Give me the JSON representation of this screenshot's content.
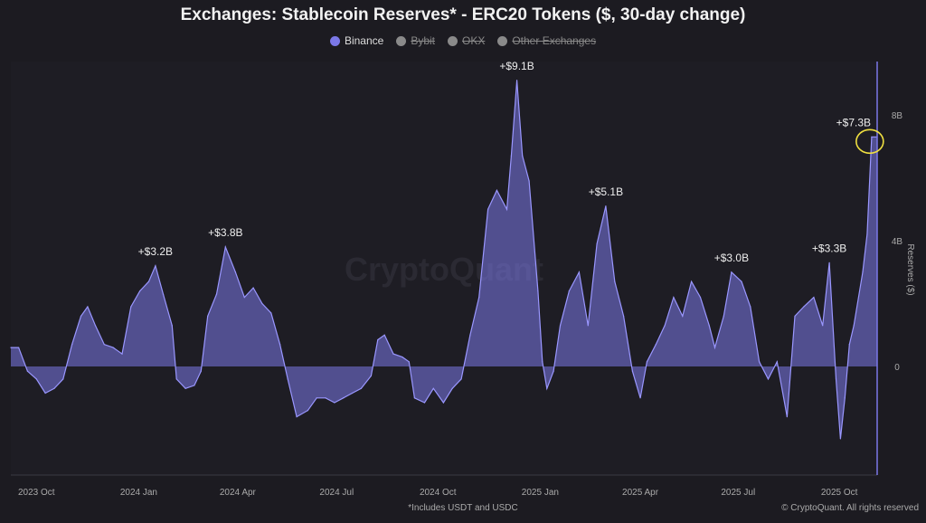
{
  "chart_data": {
    "type": "area",
    "title": "Exchanges: Stablecoin Reserves* - ERC20 Tokens ($, 30-day change)",
    "legend": [
      {
        "label": "Binance",
        "active": true,
        "color": "#7b78e8"
      },
      {
        "label": "Bybit",
        "active": false,
        "color": "#8a8a8a"
      },
      {
        "label": "OKX",
        "active": false,
        "color": "#8a8a8a"
      },
      {
        "label": "Other Exchanges",
        "active": false,
        "color": "#8a8a8a"
      }
    ],
    "legend_position": "top-center",
    "ylabel": "Reserves ($)",
    "ylim": [
      -3.5,
      9.6
    ],
    "y_unit": "billion USD",
    "y_ticks": [
      {
        "v": 0,
        "label": "0"
      },
      {
        "v": 4,
        "label": "4B"
      },
      {
        "v": 8,
        "label": "8B"
      }
    ],
    "x_unit": "days",
    "xlim": [
      0,
      779
    ],
    "x_ticks": [
      {
        "d": 23,
        "label": "2023 Oct"
      },
      {
        "d": 115,
        "label": "2024 Jan"
      },
      {
        "d": 204,
        "label": "2024 Apr"
      },
      {
        "d": 293,
        "label": "2024 Jul"
      },
      {
        "d": 384,
        "label": "2024 Oct"
      },
      {
        "d": 476,
        "label": "2025 Jan"
      },
      {
        "d": 566,
        "label": "2025 Apr"
      },
      {
        "d": 654,
        "label": "2025 Jul"
      },
      {
        "d": 745,
        "label": "2025 Oct"
      }
    ],
    "series": [
      {
        "name": "Binance",
        "points": [
          [
            0,
            0.6
          ],
          [
            7,
            0.6
          ],
          [
            15,
            -0.15
          ],
          [
            23,
            -0.4
          ],
          [
            31,
            -0.85
          ],
          [
            39,
            -0.7
          ],
          [
            47,
            -0.4
          ],
          [
            55,
            0.7
          ],
          [
            63,
            1.6
          ],
          [
            69,
            1.9
          ],
          [
            76,
            1.3
          ],
          [
            84,
            0.7
          ],
          [
            92,
            0.6
          ],
          [
            100,
            0.4
          ],
          [
            108,
            1.9
          ],
          [
            116,
            2.4
          ],
          [
            124,
            2.7
          ],
          [
            130,
            3.2
          ],
          [
            137,
            2.3
          ],
          [
            145,
            1.3
          ],
          [
            149,
            -0.4
          ],
          [
            157,
            -0.7
          ],
          [
            165,
            -0.6
          ],
          [
            171,
            -0.15
          ],
          [
            177,
            1.6
          ],
          [
            185,
            2.3
          ],
          [
            193,
            3.8
          ],
          [
            202,
            3.0
          ],
          [
            210,
            2.2
          ],
          [
            218,
            2.5
          ],
          [
            226,
            2.0
          ],
          [
            234,
            1.7
          ],
          [
            242,
            0.7
          ],
          [
            249,
            -0.4
          ],
          [
            257,
            -1.6
          ],
          [
            267,
            -1.4
          ],
          [
            275,
            -1.0
          ],
          [
            283,
            -1.0
          ],
          [
            291,
            -1.15
          ],
          [
            299,
            -1.0
          ],
          [
            307,
            -0.85
          ],
          [
            315,
            -0.7
          ],
          [
            324,
            -0.3
          ],
          [
            330,
            0.85
          ],
          [
            336,
            1.0
          ],
          [
            344,
            0.4
          ],
          [
            352,
            0.3
          ],
          [
            358,
            0.15
          ],
          [
            363,
            -1.0
          ],
          [
            372,
            -1.15
          ],
          [
            380,
            -0.7
          ],
          [
            389,
            -1.15
          ],
          [
            397,
            -0.7
          ],
          [
            405,
            -0.4
          ],
          [
            413,
            1.0
          ],
          [
            421,
            2.2
          ],
          [
            429,
            5.0
          ],
          [
            437,
            5.6
          ],
          [
            446,
            5.0
          ],
          [
            450,
            6.7
          ],
          [
            455,
            9.1
          ],
          [
            460,
            6.7
          ],
          [
            466,
            5.9
          ],
          [
            474,
            2.4
          ],
          [
            478,
            0.15
          ],
          [
            482,
            -0.7
          ],
          [
            488,
            -0.15
          ],
          [
            494,
            1.3
          ],
          [
            502,
            2.4
          ],
          [
            511,
            3.0
          ],
          [
            519,
            1.3
          ],
          [
            527,
            3.9
          ],
          [
            535,
            5.1
          ],
          [
            543,
            2.7
          ],
          [
            551,
            1.6
          ],
          [
            559,
            -0.15
          ],
          [
            566,
            -1.0
          ],
          [
            572,
            0.15
          ],
          [
            580,
            0.7
          ],
          [
            588,
            1.3
          ],
          [
            596,
            2.2
          ],
          [
            604,
            1.6
          ],
          [
            612,
            2.7
          ],
          [
            620,
            2.2
          ],
          [
            628,
            1.3
          ],
          [
            633,
            0.6
          ],
          [
            641,
            1.6
          ],
          [
            648,
            3.0
          ],
          [
            657,
            2.7
          ],
          [
            665,
            1.9
          ],
          [
            673,
            0.15
          ],
          [
            681,
            -0.4
          ],
          [
            689,
            0.15
          ],
          [
            698,
            -1.6
          ],
          [
            705,
            1.6
          ],
          [
            713,
            1.9
          ],
          [
            722,
            2.2
          ],
          [
            730,
            1.3
          ],
          [
            736,
            3.3
          ],
          [
            742,
            -0.4
          ],
          [
            746,
            -2.3
          ],
          [
            750,
            -1.0
          ],
          [
            754,
            0.7
          ],
          [
            758,
            1.3
          ],
          [
            766,
            3.0
          ],
          [
            770,
            4.2
          ],
          [
            774,
            7.3
          ],
          [
            779,
            7.3
          ]
        ],
        "color": "#7b78e8"
      }
    ],
    "annotations": [
      {
        "d": 130,
        "v": 3.2,
        "label": "+$3.2B"
      },
      {
        "d": 193,
        "v": 3.8,
        "label": "+$3.8B"
      },
      {
        "d": 455,
        "v": 9.1,
        "label": "+$9.1B"
      },
      {
        "d": 535,
        "v": 5.1,
        "label": "+$5.1B"
      },
      {
        "d": 648,
        "v": 3.0,
        "label": "+$3.0B"
      },
      {
        "d": 736,
        "v": 3.3,
        "label": "+$3.3B"
      },
      {
        "d": 774,
        "v": 7.3,
        "label": "+$7.3B",
        "highlight": true
      }
    ],
    "grid": false,
    "watermark": "CryptoQuant",
    "footnote": "*Includes USDT and USDC",
    "credit": "© CryptoQuant. All rights reserved"
  }
}
